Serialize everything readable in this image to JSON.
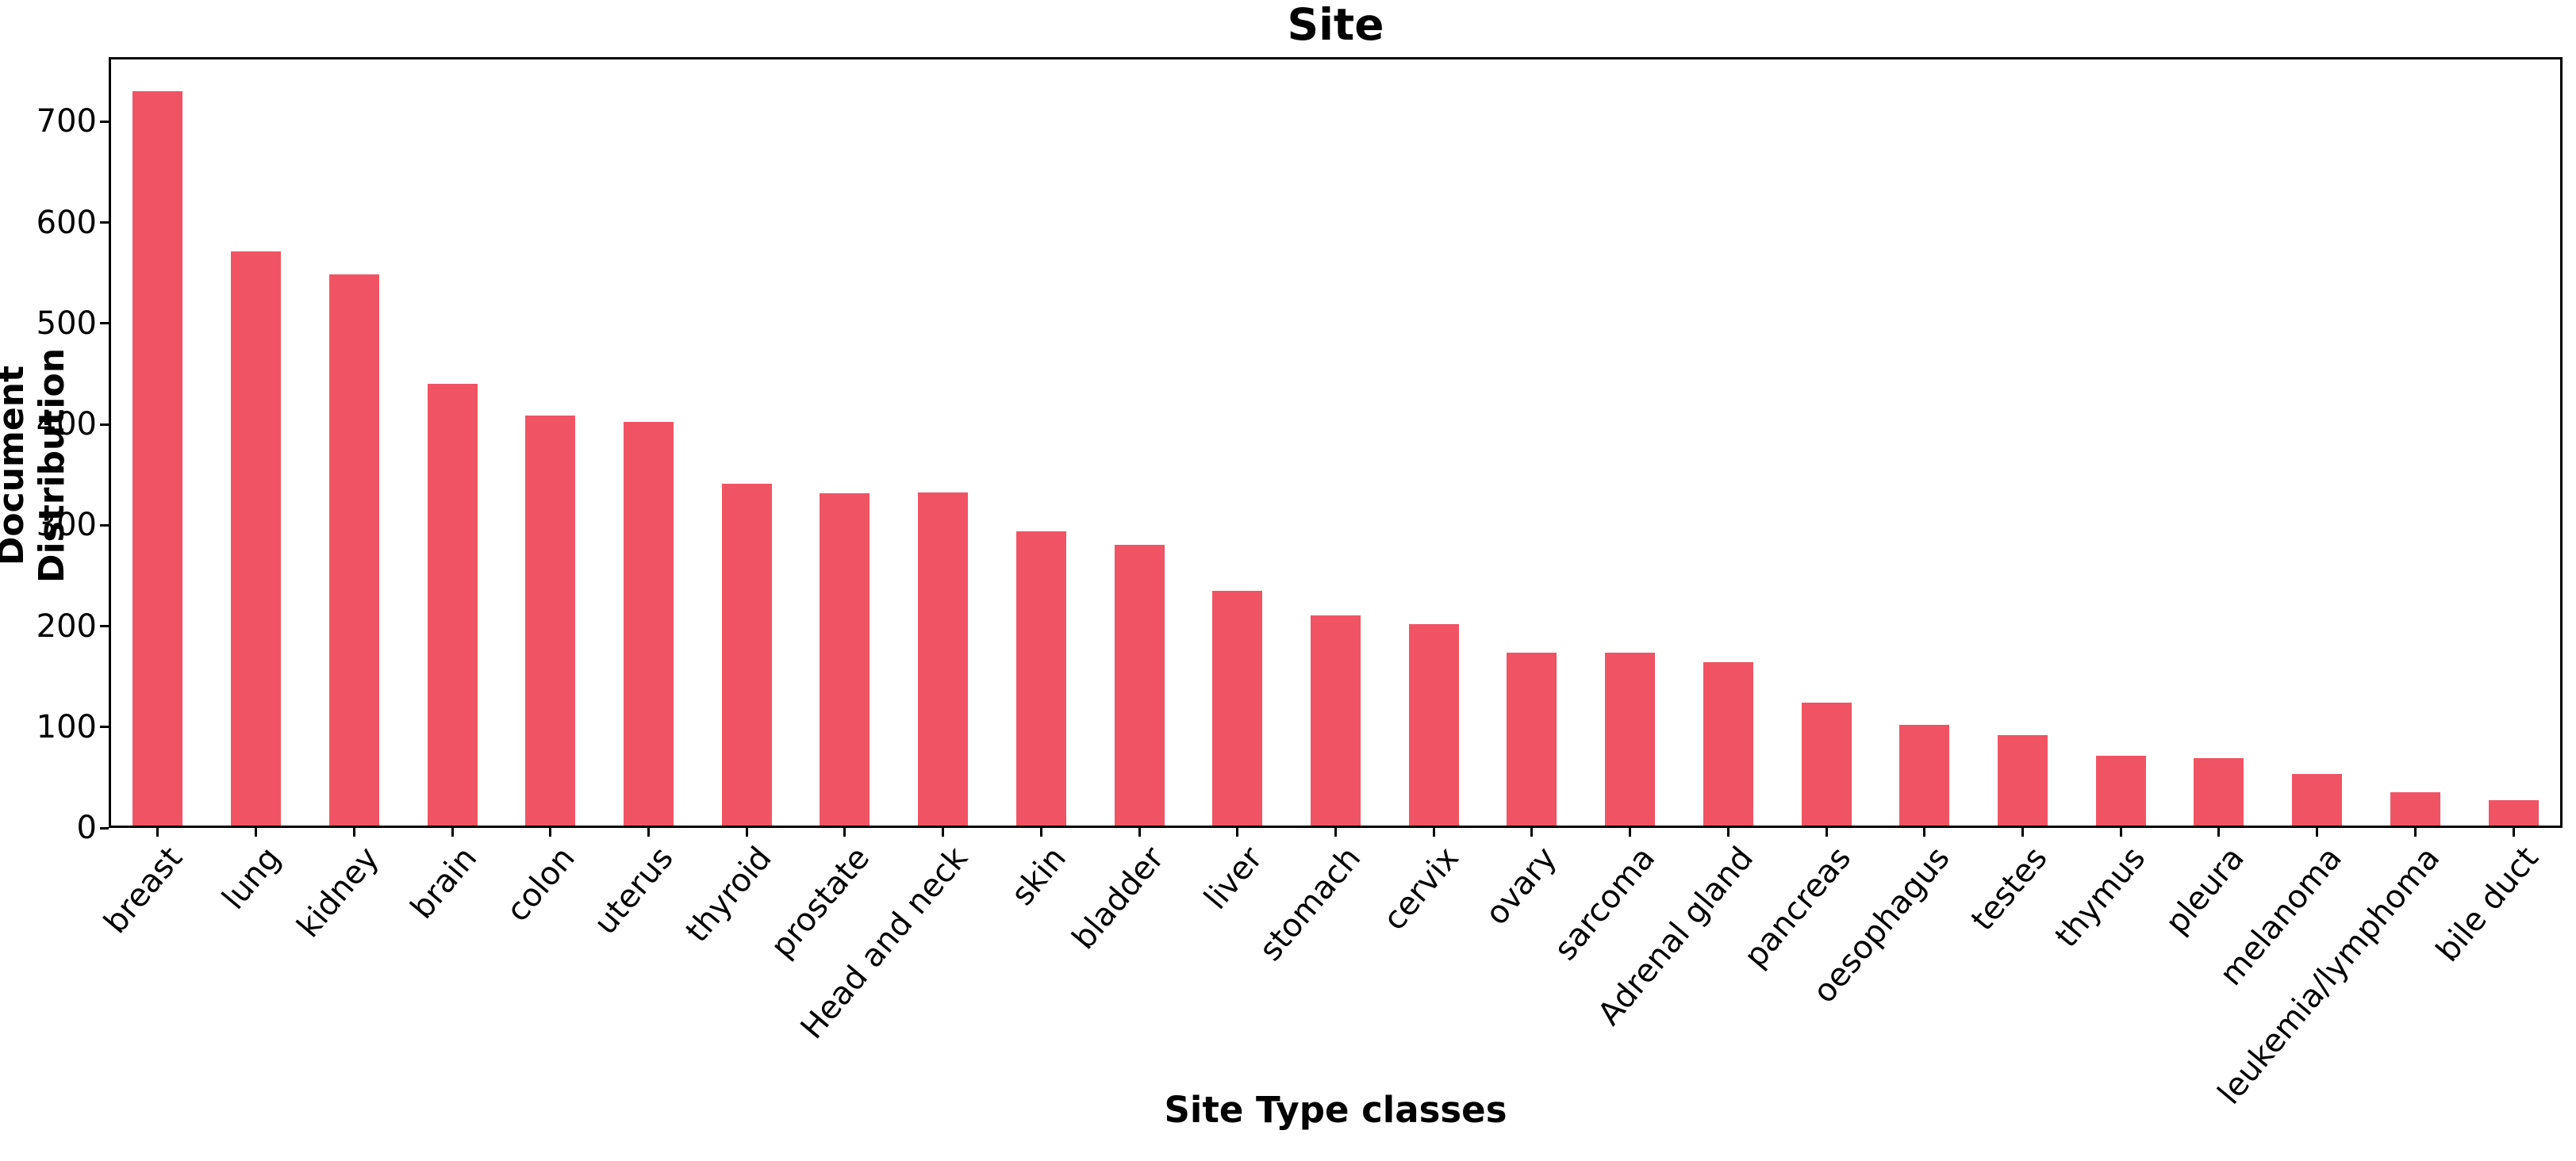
{
  "chart_data": {
    "type": "bar",
    "title": "Site",
    "xlabel": "Site Type classes",
    "ylabel": "Document Distribution",
    "categories": [
      "breast",
      "lung",
      "kidney",
      "brain",
      "colon",
      "uterus",
      "thyroid",
      "prostate",
      "Head and neck",
      "skin",
      "bladder",
      "liver",
      "stomach",
      "cervix",
      "ovary",
      "sarcoma",
      "Adrenal gland",
      "pancreas",
      "oesophagus",
      "testes",
      "thymus",
      "pleura",
      "melanoma",
      "leukemia/lymphoma",
      "bile duct"
    ],
    "values": [
      728,
      569,
      546,
      438,
      406,
      400,
      339,
      329,
      330,
      292,
      278,
      233,
      208,
      200,
      171,
      171,
      162,
      122,
      100,
      90,
      69,
      67,
      51,
      33,
      25
    ],
    "yticks": [
      0,
      100,
      200,
      300,
      400,
      500,
      600,
      700
    ],
    "ylim": [
      0,
      764
    ],
    "bar_color": "#F05464",
    "axis_color": "#000000",
    "background_color": "#FFFFFF",
    "grid": false,
    "legend": "none",
    "x_tick_rotation_deg": 50
  }
}
